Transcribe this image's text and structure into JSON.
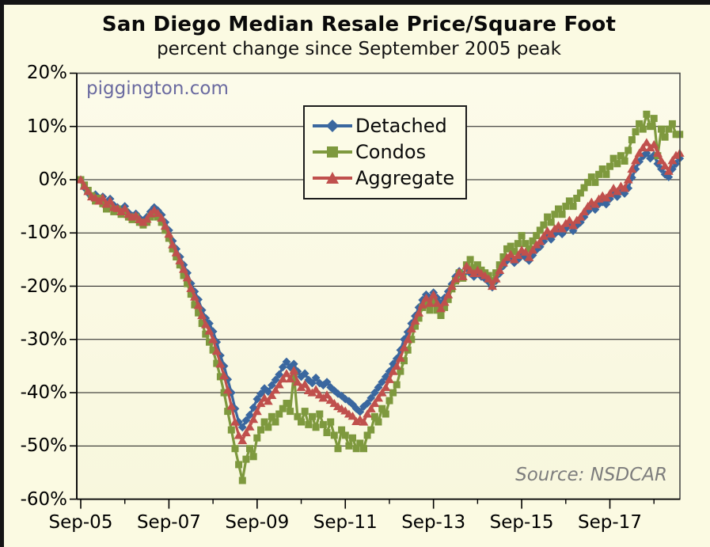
{
  "figure": {
    "title": "San Diego Median Resale Price/Square Foot",
    "subtitle": "percent change since September 2005 peak",
    "watermark": "piggington.com",
    "source": "Source: NSDCAR"
  },
  "colors": {
    "background": "#FBFAE2",
    "plot_background_top": "#FCFBEA",
    "plot_background_bottom": "#F8F7DD",
    "gridline": "#1a1a1a",
    "plot_border": "#4a4a4a",
    "detached": "#3A679F",
    "condos": "#7E993E",
    "aggregate": "#C0504D",
    "watermark_text": "#6A6AA0",
    "source_text": "#7d7d7d"
  },
  "legend": {
    "items": [
      {
        "label": "Detached",
        "marker": "diamond",
        "color": "#3A679F"
      },
      {
        "label": "Condos",
        "marker": "square",
        "color": "#7E993E"
      },
      {
        "label": "Aggregate",
        "marker": "triangle",
        "color": "#C0504D"
      }
    ]
  },
  "chart_data": {
    "type": "line",
    "title": "San Diego Median Resale Price/Square Foot",
    "subtitle": "percent change since September 2005 peak",
    "xlabel": "",
    "ylabel": "percent change since September 2005 peak (%)",
    "x_start": "2005-09",
    "x_freq": "monthly",
    "x_tick_labels": [
      "Sep-05",
      "Sep-07",
      "Sep-09",
      "Sep-11",
      "Sep-13",
      "Sep-15",
      "Sep-17"
    ],
    "x_major_tick_months": [
      0,
      24,
      48,
      72,
      96,
      120,
      144
    ],
    "x_minor_tick_months": [
      12,
      36,
      60,
      84,
      108,
      132,
      156
    ],
    "y_tick_labels": [
      "20%",
      "10%",
      "0%",
      "-10%",
      "-20%",
      "-30%",
      "-40%",
      "-50%",
      "-60%"
    ],
    "y_tick_values": [
      20,
      10,
      0,
      -10,
      -20,
      -30,
      -40,
      -50,
      -60
    ],
    "ylim": [
      -60,
      20
    ],
    "grid": true,
    "legend_position": "upper center",
    "series": [
      {
        "name": "Detached",
        "marker": "diamond",
        "color": "#3A679F",
        "values": [
          0,
          -1.5,
          -2.5,
          -3.3,
          -2.8,
          -3.8,
          -3.2,
          -4.3,
          -3.6,
          -4.8,
          -5.2,
          -5.6,
          -5.0,
          -6.2,
          -6.8,
          -6.4,
          -7.2,
          -7.8,
          -7.0,
          -6.0,
          -5.2,
          -5.8,
          -6.6,
          -8.0,
          -9.5,
          -11.5,
          -13.0,
          -14.5,
          -16.0,
          -17.5,
          -19.5,
          -21.0,
          -22.5,
          -24.5,
          -26.0,
          -27.0,
          -28.5,
          -30.5,
          -33.0,
          -35.0,
          -37.5,
          -40.0,
          -43.0,
          -45.5,
          -46.5,
          -45.2,
          -44.2,
          -42.8,
          -41.2,
          -40.2,
          -39.2,
          -39.8,
          -38.6,
          -37.6,
          -36.6,
          -35.2,
          -34.2,
          -35.2,
          -34.6,
          -36.0,
          -37.0,
          -36.4,
          -37.6,
          -38.2,
          -37.2,
          -38.2,
          -38.6,
          -38.0,
          -39.0,
          -39.6,
          -40.2,
          -40.6,
          -41.2,
          -41.6,
          -42.2,
          -43.0,
          -43.6,
          -42.6,
          -42.0,
          -41.0,
          -40.0,
          -39.0,
          -38.0,
          -37.0,
          -36.0,
          -34.6,
          -33.6,
          -32.0,
          -30.0,
          -28.6,
          -27.0,
          -25.6,
          -24.0,
          -22.6,
          -21.6,
          -22.2,
          -21.2,
          -22.2,
          -23.2,
          -22.2,
          -21.0,
          -19.6,
          -18.2,
          -17.2,
          -17.8,
          -16.6,
          -17.6,
          -18.2,
          -17.6,
          -18.2,
          -18.6,
          -19.2,
          -20.2,
          -19.0,
          -17.6,
          -16.2,
          -15.2,
          -14.6,
          -15.6,
          -15.0,
          -14.2,
          -14.6,
          -15.2,
          -14.2,
          -13.2,
          -12.6,
          -11.6,
          -10.6,
          -11.2,
          -10.2,
          -9.6,
          -10.2,
          -9.2,
          -8.6,
          -9.6,
          -8.6,
          -8.0,
          -7.0,
          -6.0,
          -5.2,
          -5.6,
          -4.6,
          -4.2,
          -4.6,
          -3.6,
          -2.6,
          -3.2,
          -2.2,
          -2.6,
          -1.6,
          0.4,
          2.0,
          3.4,
          4.4,
          5.0,
          4.0,
          4.6,
          3.0,
          2.0,
          1.0,
          0.5,
          2.0,
          3.0,
          4.0
        ]
      },
      {
        "name": "Condos",
        "marker": "square",
        "color": "#7E993E",
        "values": [
          0,
          -1.0,
          -2.0,
          -3.0,
          -4.0,
          -3.5,
          -4.5,
          -5.5,
          -5.0,
          -6.0,
          -5.5,
          -6.5,
          -6.0,
          -7.0,
          -7.5,
          -7.0,
          -8.0,
          -8.5,
          -8.0,
          -7.0,
          -6.5,
          -7.0,
          -8.0,
          -9.5,
          -11.0,
          -13.0,
          -14.5,
          -16.0,
          -18.0,
          -19.5,
          -21.5,
          -23.5,
          -25.0,
          -27.0,
          -29.0,
          -30.5,
          -32.0,
          -34.5,
          -37.0,
          -40.0,
          -43.5,
          -47.0,
          -50.5,
          -53.5,
          -56.5,
          -52.5,
          -50.5,
          -52.0,
          -48.5,
          -47.0,
          -45.5,
          -46.5,
          -44.5,
          -45.5,
          -44.0,
          -43.0,
          -42.0,
          -43.5,
          -36.5,
          -44.5,
          -45.5,
          -43.5,
          -46.0,
          -44.5,
          -46.5,
          -44.0,
          -46.0,
          -47.5,
          -45.5,
          -48.0,
          -50.5,
          -47.0,
          -48.0,
          -50.0,
          -48.5,
          -50.5,
          -49.5,
          -50.5,
          -48.0,
          -47.0,
          -44.5,
          -45.5,
          -43.0,
          -44.0,
          -41.5,
          -40.0,
          -38.5,
          -36.0,
          -34.0,
          -32.0,
          -30.0,
          -27.5,
          -26.0,
          -24.0,
          -23.0,
          -24.5,
          -23.0,
          -24.5,
          -25.5,
          -24.0,
          -22.5,
          -20.5,
          -19.0,
          -17.5,
          -18.5,
          -16.0,
          -15.0,
          -16.5,
          -16.0,
          -17.0,
          -17.5,
          -18.0,
          -19.0,
          -17.5,
          -16.0,
          -14.5,
          -13.0,
          -12.5,
          -13.5,
          -12.0,
          -10.5,
          -12.0,
          -13.0,
          -11.5,
          -10.5,
          -9.5,
          -8.5,
          -7.0,
          -8.0,
          -6.5,
          -5.5,
          -6.5,
          -5.0,
          -4.0,
          -5.0,
          -3.5,
          -2.5,
          -1.5,
          -0.5,
          0.5,
          -0.5,
          1.0,
          2.0,
          1.0,
          2.5,
          4.0,
          3.0,
          4.5,
          3.5,
          5.5,
          7.5,
          9.0,
          10.5,
          9.5,
          12.3,
          10.0,
          11.5,
          4.5,
          9.5,
          8.0,
          9.5,
          10.5,
          8.5,
          8.5
        ]
      },
      {
        "name": "Aggregate",
        "marker": "triangle",
        "color": "#C0504D",
        "values": [
          0,
          -1.2,
          -2.2,
          -3.2,
          -3.4,
          -4.0,
          -3.4,
          -4.6,
          -4.0,
          -5.2,
          -5.4,
          -6.0,
          -5.4,
          -6.5,
          -7.0,
          -6.7,
          -7.5,
          -8.0,
          -7.4,
          -6.4,
          -5.7,
          -6.3,
          -7.2,
          -8.7,
          -10.2,
          -12.2,
          -13.7,
          -15.2,
          -16.8,
          -18.4,
          -20.4,
          -22.0,
          -23.6,
          -25.5,
          -27.2,
          -28.4,
          -30.0,
          -32.2,
          -34.6,
          -36.8,
          -39.5,
          -42.5,
          -45.5,
          -48.0,
          -49.0,
          -47.5,
          -46.4,
          -45.0,
          -43.5,
          -42.0,
          -41.0,
          -41.6,
          -40.5,
          -39.5,
          -38.5,
          -37.4,
          -36.4,
          -37.4,
          -35.8,
          -38.0,
          -39.0,
          -38.4,
          -39.6,
          -40.0,
          -39.4,
          -40.4,
          -41.0,
          -40.4,
          -41.4,
          -42.0,
          -42.6,
          -43.0,
          -43.4,
          -44.0,
          -44.4,
          -45.4,
          -45.0,
          -45.5,
          -44.0,
          -43.0,
          -42.0,
          -41.0,
          -40.0,
          -39.0,
          -37.5,
          -36.0,
          -35.0,
          -33.5,
          -31.5,
          -30.0,
          -28.0,
          -26.5,
          -25.0,
          -23.5,
          -22.2,
          -23.2,
          -21.6,
          -23.2,
          -24.2,
          -23.0,
          -21.6,
          -20.0,
          -18.6,
          -17.4,
          -18.2,
          -16.2,
          -17.0,
          -17.6,
          -17.0,
          -17.6,
          -18.0,
          -18.6,
          -20.0,
          -18.6,
          -17.0,
          -15.6,
          -14.6,
          -14.0,
          -15.0,
          -14.2,
          -13.2,
          -13.6,
          -14.6,
          -13.2,
          -12.2,
          -11.6,
          -10.6,
          -9.6,
          -10.2,
          -9.2,
          -8.6,
          -9.2,
          -8.2,
          -7.6,
          -8.6,
          -7.6,
          -7.0,
          -6.0,
          -5.0,
          -4.2,
          -4.6,
          -3.6,
          -3.0,
          -3.4,
          -2.6,
          -1.6,
          -2.2,
          -1.2,
          -1.6,
          0.0,
          2.0,
          3.6,
          5.0,
          6.0,
          7.0,
          6.0,
          6.6,
          5.0,
          3.6,
          2.6,
          1.6,
          3.6,
          4.6,
          5.0
        ]
      }
    ]
  }
}
